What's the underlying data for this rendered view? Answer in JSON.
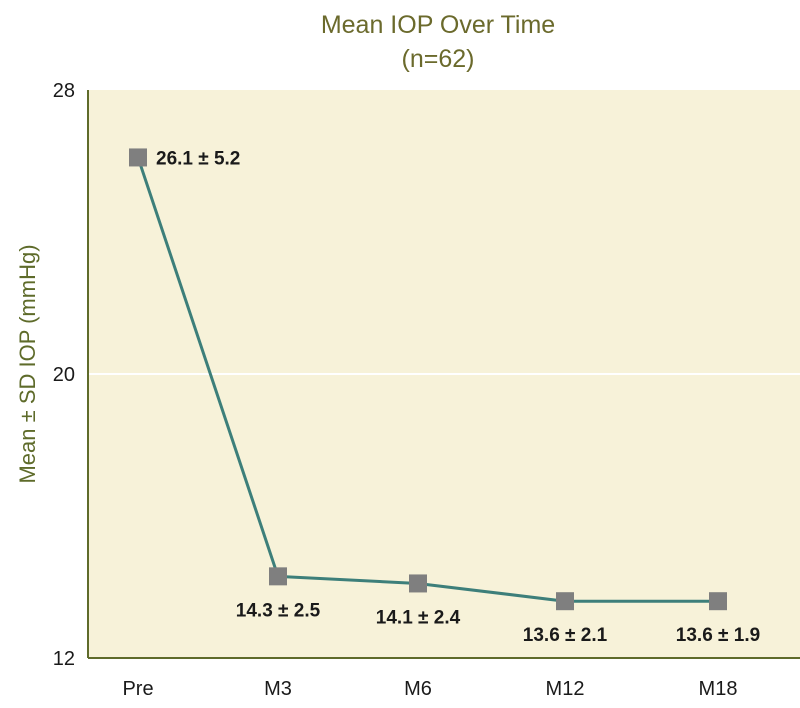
{
  "chart_data": {
    "type": "line",
    "title": "Mean IOP Over Time",
    "subtitle": "(n=62)",
    "ylabel": "Mean ± SD IOP (mmHg)",
    "xlabel": "",
    "categories": [
      "Pre",
      "M3",
      "M6",
      "M12",
      "M18"
    ],
    "series": [
      {
        "values": [
          26.1,
          14.3,
          14.1,
          13.6,
          13.6
        ],
        "labels": [
          "26.1 ± 5.2",
          "14.3 ± 2.5",
          "14.1 ± 2.4",
          "13.6 ± 2.1",
          "13.6 ± 1.9"
        ]
      }
    ],
    "ylim": [
      12,
      28
    ],
    "yticks": [
      "28",
      "20",
      "12"
    ],
    "ytick_values": [
      28,
      20,
      12
    ],
    "grid": "horizontal gridline at 20",
    "legend": "none",
    "colors": {
      "plot_background": "#f7f2d9",
      "line": "#3d7f7a",
      "marker": "#7f7f7f",
      "axis": "#5f6b2a",
      "title": "#6b6a2c",
      "gridline": "#ffffff"
    }
  }
}
